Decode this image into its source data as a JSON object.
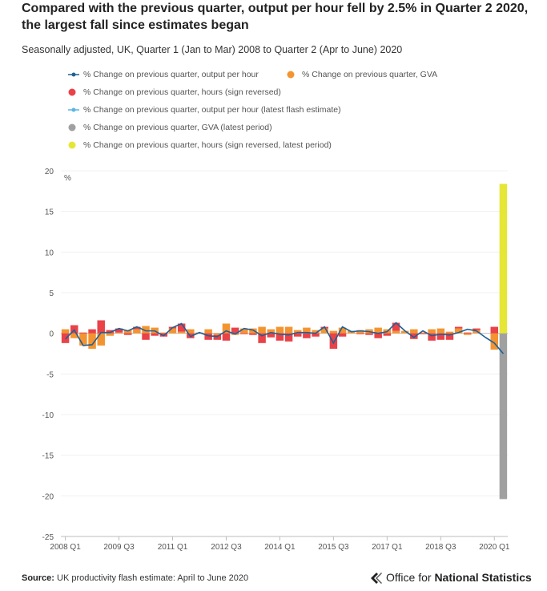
{
  "title": "Compared with the previous quarter, output per hour fell by 2.5% in Quarter 2 2020, the largest fall since estimates began",
  "subtitle": "Seasonally adjusted, UK, Quarter 1 (Jan to Mar) 2008 to Quarter 2 (Apr to June) 2020",
  "legend": [
    {
      "label": "% Change on previous quarter, output per hour",
      "color": "#206095",
      "kind": "line-dot"
    },
    {
      "label": "% Change on previous quarter, GVA",
      "color": "#f39431",
      "kind": "dot"
    },
    {
      "label": "% Change on previous quarter, hours (sign reversed)",
      "color": "#e94248",
      "kind": "dot"
    },
    {
      "label": "% Change on previous quarter, output per hour (latest flash estimate)",
      "color": "#5bb5e3",
      "kind": "line-dot"
    },
    {
      "label": "% Change on previous quarter, GVA (latest period)",
      "color": "#a0a0a0",
      "kind": "dot"
    },
    {
      "label": "% Change on previous quarter, hours (sign reversed, latest period)",
      "color": "#e6e636",
      "kind": "dot"
    }
  ],
  "footer": {
    "source_label": "Source:",
    "source_text": "UK productivity flash estimate: April to June 2020"
  },
  "brand": {
    "prefix": "Office for ",
    "bold": "National Statistics"
  },
  "colors": {
    "gva": "#f39431",
    "hours": "#e94248",
    "oph": "#206095",
    "gva_latest": "#a0a0a0",
    "hours_latest": "#e6e636",
    "oph_flash": "#5bb5e3"
  },
  "chart_data": {
    "type": "bar",
    "y_unit_label": "%",
    "ylim": [
      -25,
      20
    ],
    "yticks": [
      20,
      15,
      10,
      5,
      0,
      -5,
      -10,
      -15,
      -20,
      -25
    ],
    "xtick_labels": [
      {
        "index": 0,
        "label": "2008 Q1"
      },
      {
        "index": 6,
        "label": "2009 Q3"
      },
      {
        "index": 12,
        "label": "2011 Q1"
      },
      {
        "index": 18,
        "label": "2012 Q3"
      },
      {
        "index": 24,
        "label": "2014 Q1"
      },
      {
        "index": 30,
        "label": "2015 Q3"
      },
      {
        "index": 36,
        "label": "2017 Q1"
      },
      {
        "index": 42,
        "label": "2018 Q3"
      },
      {
        "index": 48,
        "label": "2020 Q1"
      }
    ],
    "categories": [
      "2008 Q1",
      "2008 Q2",
      "2008 Q3",
      "2008 Q4",
      "2009 Q1",
      "2009 Q2",
      "2009 Q3",
      "2009 Q4",
      "2010 Q1",
      "2010 Q2",
      "2010 Q3",
      "2010 Q4",
      "2011 Q1",
      "2011 Q2",
      "2011 Q3",
      "2011 Q4",
      "2012 Q1",
      "2012 Q2",
      "2012 Q3",
      "2012 Q4",
      "2013 Q1",
      "2013 Q2",
      "2013 Q3",
      "2013 Q4",
      "2014 Q1",
      "2014 Q2",
      "2014 Q3",
      "2014 Q4",
      "2015 Q1",
      "2015 Q2",
      "2015 Q3",
      "2015 Q4",
      "2016 Q1",
      "2016 Q2",
      "2016 Q3",
      "2016 Q4",
      "2017 Q1",
      "2017 Q2",
      "2017 Q3",
      "2017 Q4",
      "2018 Q1",
      "2018 Q2",
      "2018 Q3",
      "2018 Q4",
      "2019 Q1",
      "2019 Q2",
      "2019 Q3",
      "2019 Q4",
      "2020 Q1",
      "2020 Q2"
    ],
    "series": [
      {
        "name": "% Change on previous quarter, GVA",
        "kind": "bar",
        "values": [
          0.5,
          -0.6,
          -1.5,
          -1.9,
          -1.5,
          -0.3,
          0.1,
          0.4,
          0.5,
          0.9,
          0.7,
          0.1,
          0.6,
          0.2,
          0.5,
          0.1,
          0.5,
          -0.2,
          1.2,
          -0.2,
          0.6,
          0.6,
          0.8,
          0.5,
          0.8,
          0.8,
          0.4,
          0.7,
          0.4,
          0.6,
          0.3,
          0.7,
          0.3,
          0.4,
          0.5,
          0.7,
          0.5,
          0.3,
          0.3,
          0.5,
          0.1,
          0.5,
          0.6,
          0.2,
          0.6,
          -0.2,
          0.4,
          0.0,
          -2.0,
          0.0
        ]
      },
      {
        "name": "% Change on previous quarter, hours (sign reversed)",
        "kind": "bar",
        "values": [
          -1.2,
          1.0,
          0.1,
          0.5,
          1.6,
          0.4,
          0.5,
          -0.2,
          0.3,
          -0.8,
          -0.3,
          -0.4,
          0.2,
          1.0,
          -0.6,
          0.0,
          -0.8,
          -0.6,
          -0.9,
          0.7,
          -0.1,
          -0.2,
          -1.2,
          -0.5,
          -0.9,
          -1.0,
          -0.4,
          -0.6,
          -0.4,
          0.2,
          -1.9,
          -0.4,
          0.0,
          -0.1,
          -0.2,
          -0.6,
          -0.3,
          1.0,
          0.0,
          -0.7,
          -0.1,
          -0.9,
          -0.8,
          -0.8,
          0.2,
          0.1,
          0.2,
          0.0,
          0.8,
          0.0
        ]
      },
      {
        "name": "% Change on previous quarter, output per hour",
        "kind": "line",
        "values": [
          -0.7,
          0.4,
          -1.5,
          -1.4,
          0.1,
          0.1,
          0.6,
          0.3,
          0.8,
          0.3,
          0.3,
          -0.3,
          0.7,
          1.2,
          -0.4,
          0.1,
          -0.3,
          -0.4,
          0.3,
          -0.1,
          0.6,
          0.4,
          -0.3,
          0.1,
          -0.1,
          -0.2,
          0.1,
          0.1,
          0.0,
          0.8,
          -1.2,
          0.8,
          0.2,
          0.3,
          0.2,
          0.0,
          0.2,
          1.3,
          0.3,
          -0.5,
          0.3,
          -0.3,
          -0.1,
          -0.2,
          0.1,
          0.5,
          0.3,
          -0.5,
          null,
          null
        ]
      },
      {
        "name": "% Change on previous quarter, output per hour (latest flash estimate)",
        "kind": "line",
        "values": [
          null,
          null,
          null,
          null,
          null,
          null,
          null,
          null,
          null,
          null,
          null,
          null,
          null,
          null,
          null,
          null,
          null,
          null,
          null,
          null,
          null,
          null,
          null,
          null,
          null,
          null,
          null,
          null,
          null,
          null,
          null,
          null,
          null,
          null,
          null,
          null,
          null,
          null,
          null,
          null,
          null,
          null,
          null,
          null,
          null,
          null,
          null,
          -0.5,
          -1.2,
          -2.5
        ]
      },
      {
        "name": "% Change on previous quarter, GVA (latest period)",
        "kind": "bar",
        "values": [
          null,
          null,
          null,
          null,
          null,
          null,
          null,
          null,
          null,
          null,
          null,
          null,
          null,
          null,
          null,
          null,
          null,
          null,
          null,
          null,
          null,
          null,
          null,
          null,
          null,
          null,
          null,
          null,
          null,
          null,
          null,
          null,
          null,
          null,
          null,
          null,
          null,
          null,
          null,
          null,
          null,
          null,
          null,
          null,
          null,
          null,
          null,
          null,
          null,
          -20.4
        ]
      },
      {
        "name": "% Change on previous quarter, hours (sign reversed, latest period)",
        "kind": "bar",
        "values": [
          null,
          null,
          null,
          null,
          null,
          null,
          null,
          null,
          null,
          null,
          null,
          null,
          null,
          null,
          null,
          null,
          null,
          null,
          null,
          null,
          null,
          null,
          null,
          null,
          null,
          null,
          null,
          null,
          null,
          null,
          null,
          null,
          null,
          null,
          null,
          null,
          null,
          null,
          null,
          null,
          null,
          null,
          null,
          null,
          null,
          null,
          null,
          null,
          null,
          18.4
        ]
      }
    ]
  }
}
